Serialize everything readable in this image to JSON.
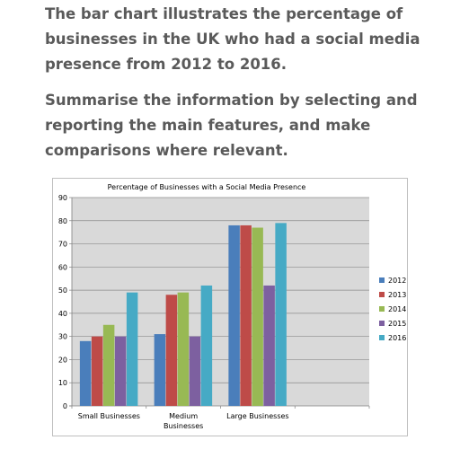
{
  "prompt": {
    "paragraph1": "The bar chart illustrates the percentage of businesses in the UK who had a social media presence from 2012 to 2016.",
    "paragraph2": "Summarise the information by selecting and reporting the main features, and make comparisons where relevant."
  },
  "chart_data": {
    "type": "bar",
    "title": "Percentage of Businesses with a Social Media Presence",
    "xlabel": "",
    "ylabel": "",
    "categories": [
      "Small Businesses",
      "Medium Businesses",
      "Large Businesses"
    ],
    "series": [
      {
        "name": "2012",
        "color": "#4a7ebb",
        "values": [
          28,
          31,
          78
        ]
      },
      {
        "name": "2013",
        "color": "#be4b48",
        "values": [
          30,
          48,
          78
        ]
      },
      {
        "name": "2014",
        "color": "#98b954",
        "values": [
          35,
          49,
          77
        ]
      },
      {
        "name": "2015",
        "color": "#7d60a0",
        "values": [
          30,
          30,
          52
        ]
      },
      {
        "name": "2016",
        "color": "#46aac5",
        "values": [
          49,
          52,
          79
        ]
      }
    ],
    "ylim": [
      0,
      90
    ],
    "yticks": [
      0,
      10,
      20,
      30,
      40,
      50,
      60,
      70,
      80,
      90
    ],
    "grid": true,
    "plot_background": "#d9d9d9",
    "legend_position": "right"
  }
}
